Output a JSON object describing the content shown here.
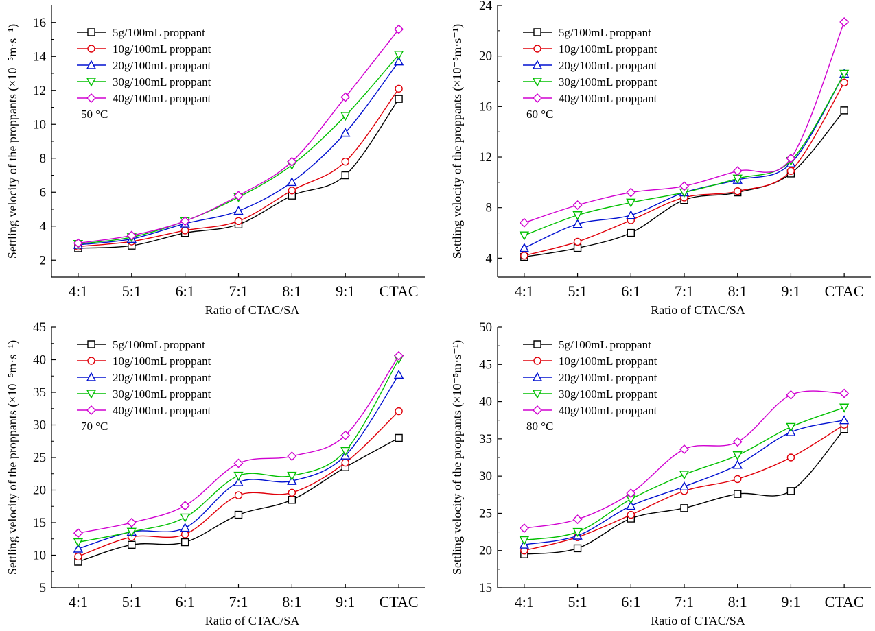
{
  "colors": {
    "5g": "#000000",
    "10g": "#e0000a",
    "20g": "#0010d0",
    "30g": "#00c000",
    "40g": "#d000d0"
  },
  "chart_data": [
    {
      "type": "line",
      "annotation": "50 °C",
      "categories": [
        "4:1",
        "5:1",
        "6:1",
        "7:1",
        "8:1",
        "9:1",
        "CTAC"
      ],
      "xlabel": "Ratio of CTAC/SA",
      "ylabel": "Settling velocity of the proppants (×10⁻⁵m·s⁻¹)",
      "ylim": [
        1,
        17
      ],
      "yticks": [
        2,
        4,
        6,
        8,
        10,
        12,
        14,
        16
      ],
      "legend_position": "top-left",
      "series": [
        {
          "name": "5g/100mL proppant",
          "marker": "square",
          "color_key": "5g",
          "values": [
            2.7,
            2.85,
            3.6,
            4.1,
            5.8,
            7.0,
            11.5
          ]
        },
        {
          "name": "10g/100mL proppant",
          "marker": "circle",
          "color_key": "10g",
          "values": [
            2.8,
            3.1,
            3.75,
            4.3,
            6.1,
            7.8,
            12.1
          ]
        },
        {
          "name": "20g/100mL proppant",
          "marker": "triangle-up",
          "color_key": "20g",
          "values": [
            2.9,
            3.25,
            4.15,
            4.9,
            6.6,
            9.5,
            13.7
          ]
        },
        {
          "name": "30g/100mL proppant",
          "marker": "triangle-down",
          "color_key": "30g",
          "values": [
            2.95,
            3.35,
            4.3,
            5.7,
            7.6,
            10.5,
            14.1
          ]
        },
        {
          "name": "40g/100mL proppant",
          "marker": "diamond",
          "color_key": "40g",
          "values": [
            3.0,
            3.45,
            4.3,
            5.8,
            7.8,
            11.6,
            15.6
          ]
        }
      ]
    },
    {
      "type": "line",
      "annotation": "60 °C",
      "categories": [
        "4:1",
        "5:1",
        "6:1",
        "7:1",
        "8:1",
        "9:1",
        "CTAC"
      ],
      "xlabel": "Ratio of CTAC/SA",
      "ylabel": "Settling velocity of the proppants (×10⁻⁵m·s⁻¹)",
      "ylim": [
        2.5,
        24
      ],
      "yticks": [
        4,
        8,
        12,
        16,
        20,
        24
      ],
      "legend_position": "top-left",
      "series": [
        {
          "name": "5g/100mL proppant",
          "marker": "square",
          "color_key": "5g",
          "values": [
            4.1,
            4.8,
            6.0,
            8.6,
            9.2,
            10.7,
            15.7
          ]
        },
        {
          "name": "10g/100mL proppant",
          "marker": "circle",
          "color_key": "10g",
          "values": [
            4.2,
            5.3,
            7.0,
            8.8,
            9.3,
            10.9,
            17.9
          ]
        },
        {
          "name": "20g/100mL proppant",
          "marker": "triangle-up",
          "color_key": "20g",
          "values": [
            4.8,
            6.7,
            7.4,
            9.2,
            10.2,
            11.5,
            18.6
          ]
        },
        {
          "name": "30g/100mL proppant",
          "marker": "triangle-down",
          "color_key": "30g",
          "values": [
            5.8,
            7.4,
            8.4,
            9.2,
            10.3,
            11.7,
            18.6
          ]
        },
        {
          "name": "40g/100mL proppant",
          "marker": "diamond",
          "color_key": "40g",
          "values": [
            6.8,
            8.2,
            9.2,
            9.7,
            10.9,
            11.9,
            22.7
          ]
        }
      ]
    },
    {
      "type": "line",
      "annotation": "70 °C",
      "categories": [
        "4:1",
        "5:1",
        "6:1",
        "7:1",
        "8:1",
        "9:1",
        "CTAC"
      ],
      "xlabel": "Ratio of CTAC/SA",
      "ylabel": "Settling velocity of the proppants (×10⁻⁵m·s⁻¹)",
      "ylim": [
        5,
        45
      ],
      "yticks": [
        5,
        10,
        15,
        20,
        25,
        30,
        35,
        40,
        45
      ],
      "legend_position": "top-left",
      "series": [
        {
          "name": "5g/100mL proppant",
          "marker": "square",
          "color_key": "5g",
          "values": [
            9.0,
            11.6,
            12.0,
            16.2,
            18.5,
            23.5,
            28.0
          ]
        },
        {
          "name": "10g/100mL proppant",
          "marker": "circle",
          "color_key": "10g",
          "values": [
            9.8,
            12.8,
            13.2,
            19.2,
            19.6,
            24.2,
            32.1
          ]
        },
        {
          "name": "20g/100mL proppant",
          "marker": "triangle-up",
          "color_key": "20g",
          "values": [
            11.0,
            13.6,
            14.2,
            21.2,
            21.4,
            25.3,
            37.7
          ]
        },
        {
          "name": "30g/100mL proppant",
          "marker": "triangle-down",
          "color_key": "30g",
          "values": [
            12.0,
            13.6,
            15.8,
            22.2,
            22.2,
            26.0,
            40.1
          ]
        },
        {
          "name": "40g/100mL proppant",
          "marker": "diamond",
          "color_key": "40g",
          "values": [
            13.4,
            15.0,
            17.6,
            24.1,
            25.2,
            28.4,
            40.6
          ]
        }
      ]
    },
    {
      "type": "line",
      "annotation": "80 °C",
      "categories": [
        "4:1",
        "5:1",
        "6:1",
        "7:1",
        "8:1",
        "9:1",
        "CTAC"
      ],
      "xlabel": "Ratio of CTAC/SA",
      "ylabel": "Settling velocity of the proppants (×10⁻⁵m·s⁻¹)",
      "ylim": [
        15,
        50
      ],
      "yticks": [
        15,
        20,
        25,
        30,
        35,
        40,
        45,
        50
      ],
      "legend_position": "top-left",
      "series": [
        {
          "name": "5g/100mL proppant",
          "marker": "square",
          "color_key": "5g",
          "values": [
            19.5,
            20.3,
            24.3,
            25.7,
            27.6,
            28.0,
            36.3
          ]
        },
        {
          "name": "10g/100mL proppant",
          "marker": "circle",
          "color_key": "10g",
          "values": [
            20.0,
            21.8,
            24.8,
            28.0,
            29.6,
            32.5,
            36.9
          ]
        },
        {
          "name": "20g/100mL proppant",
          "marker": "triangle-up",
          "color_key": "20g",
          "values": [
            20.8,
            22.0,
            26.0,
            28.6,
            31.5,
            35.9,
            37.5
          ]
        },
        {
          "name": "30g/100mL proppant",
          "marker": "triangle-down",
          "color_key": "30g",
          "values": [
            21.4,
            22.5,
            26.9,
            30.2,
            32.8,
            36.6,
            39.2
          ]
        },
        {
          "name": "40g/100mL proppant",
          "marker": "diamond",
          "color_key": "40g",
          "values": [
            23.0,
            24.2,
            27.7,
            33.6,
            34.6,
            40.9,
            41.1
          ]
        }
      ]
    }
  ]
}
